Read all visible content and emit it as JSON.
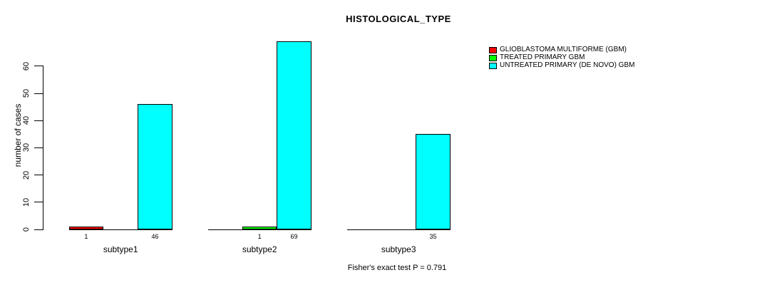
{
  "chart_data": {
    "type": "bar",
    "title": "HISTOLOGICAL_TYPE",
    "ylabel": "number of cases",
    "categories": [
      "subtype1",
      "subtype2",
      "subtype3"
    ],
    "series": [
      {
        "name": "GLIOBLASTOMA MULTIFORME (GBM)",
        "color": "#FF0000",
        "values": [
          1,
          0,
          0
        ]
      },
      {
        "name": "TREATED PRIMARY GBM",
        "color": "#00FF00",
        "values": [
          0,
          1,
          0
        ]
      },
      {
        "name": "UNTREATED PRIMARY (DE NOVO) GBM",
        "color": "#00FFFF",
        "values": [
          46,
          69,
          35
        ]
      }
    ],
    "bar_value_labels": {
      "subtype1": [
        1,
        null,
        46
      ],
      "subtype2": [
        null,
        1,
        69
      ],
      "subtype3": [
        null,
        null,
        35
      ]
    },
    "ylim": [
      0,
      60
    ],
    "yticks": [
      0,
      10,
      20,
      30,
      40,
      50,
      60
    ],
    "grid": false,
    "legend_position": "right",
    "footnote": "Fisher's exact test P = 0.791"
  }
}
